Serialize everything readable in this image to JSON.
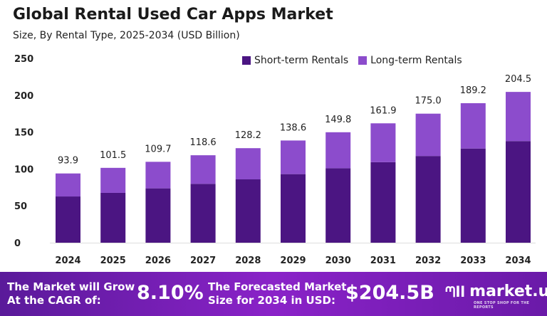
{
  "chart_data": {
    "type": "bar",
    "stacked": true,
    "title": "Global Rental Used Car Apps Market",
    "subtitle": "Size, By Rental Type, 2025-2034 (USD Billion)",
    "categories": [
      "2024",
      "2025",
      "2026",
      "2027",
      "2028",
      "2029",
      "2030",
      "2031",
      "2032",
      "2033",
      "2034"
    ],
    "series": [
      {
        "name": "Short-term Rentals",
        "color": "#4b1582",
        "values": [
          62.7,
          67.6,
          73.7,
          79.8,
          85.9,
          93.0,
          101.0,
          109.2,
          117.6,
          127.7,
          137.8
        ]
      },
      {
        "name": "Long-term Rentals",
        "color": "#8c4ccc",
        "values": [
          31.2,
          33.9,
          36.0,
          38.8,
          42.3,
          45.6,
          48.8,
          52.7,
          57.4,
          61.5,
          66.7
        ]
      }
    ],
    "totals": [
      "93.9",
      "101.5",
      "109.7",
      "118.6",
      "128.2",
      "138.6",
      "149.8",
      "161.9",
      "175.0",
      "189.2",
      "204.5"
    ],
    "yticks": [
      "0",
      "50",
      "100",
      "150",
      "200",
      "250"
    ],
    "ylim": [
      0,
      250
    ],
    "grid": false,
    "legend": "top-right"
  },
  "footer": {
    "cagr_text_1": "The Market will Grow",
    "cagr_text_2": "At the CAGR of:",
    "cagr_value": "8.10%",
    "forecast_text_1": "The Forecasted Market",
    "forecast_text_2": "Size for 2034 in USD:",
    "forecast_value": "$204.5B",
    "logo": "market.us",
    "logo_tagline": "ONE STOP SHOP FOR THE REPORTS"
  }
}
